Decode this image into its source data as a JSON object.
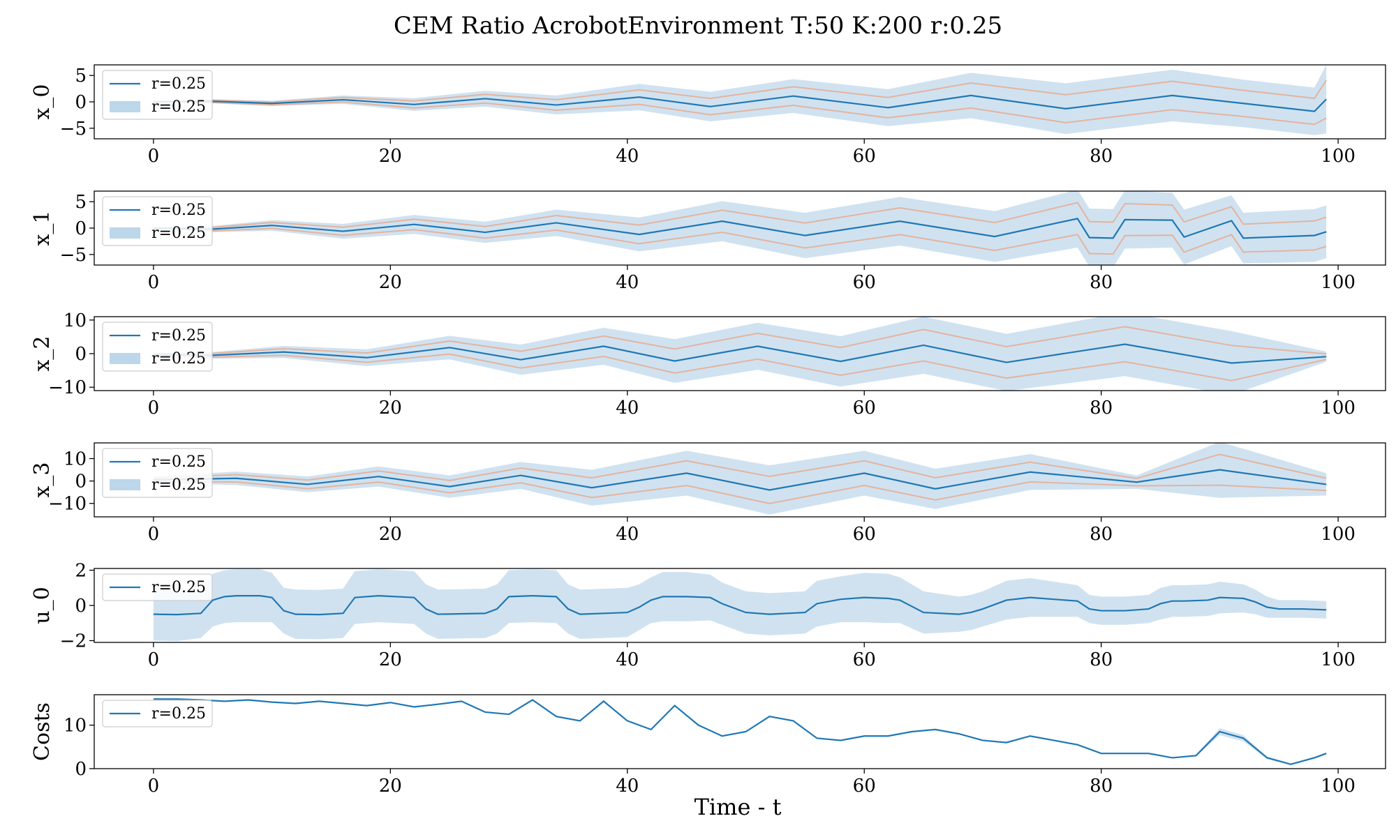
{
  "figure": {
    "title": "CEM Ratio AcrobotEnvironment T:50 K:200 r:0.25",
    "xlabel": "Time - t"
  },
  "colors": {
    "mean": "#1f77b4",
    "band": "#bcd6ea",
    "bounds": "#e8a88a"
  },
  "chart_data": [
    {
      "type": "line",
      "ylabel": "x_0",
      "xlim": [
        -5,
        104
      ],
      "ylim": [
        -7,
        7
      ],
      "yticks": [
        -5,
        0,
        5
      ],
      "xticks": [
        0,
        20,
        40,
        60,
        80,
        100
      ],
      "legend": {
        "placement": "upper-left",
        "entries": [
          "r=0.25",
          "r=0.25"
        ]
      },
      "x": [
        0,
        5,
        10,
        16,
        22,
        28,
        34,
        41,
        47,
        54,
        62,
        69,
        77,
        86,
        92,
        98,
        99
      ],
      "mean": [
        0,
        0.1,
        -0.3,
        0.4,
        -0.5,
        0.6,
        -0.6,
        0.9,
        -0.9,
        1.1,
        -1.1,
        1.2,
        -1.3,
        1.2,
        -0.3,
        -1.8,
        0.5
      ],
      "band_half": [
        0,
        0.4,
        0.5,
        0.8,
        1.2,
        1.5,
        1.8,
        2.5,
        2.8,
        3.2,
        3.5,
        4.3,
        4.8,
        4.9,
        4.5,
        4.5,
        6.5
      ]
    },
    {
      "type": "line",
      "ylabel": "x_1",
      "xlim": [
        -5,
        104
      ],
      "ylim": [
        -7,
        7
      ],
      "yticks": [
        -5,
        0,
        5
      ],
      "xticks": [
        0,
        20,
        40,
        60,
        80,
        100
      ],
      "legend": {
        "placement": "upper-left",
        "entries": [
          "r=0.25",
          "r=0.25"
        ]
      },
      "x": [
        0,
        5,
        10,
        16,
        22,
        28,
        34,
        41,
        48,
        55,
        63,
        71,
        78,
        79,
        81,
        82,
        86,
        87,
        91,
        92,
        98,
        99
      ],
      "mean": [
        0,
        -0.2,
        0.5,
        -0.6,
        0.7,
        -0.8,
        1.0,
        -1.2,
        1.3,
        -1.4,
        1.3,
        -1.6,
        1.8,
        -1.8,
        -1.9,
        1.6,
        1.5,
        -1.7,
        1.4,
        -1.9,
        -1.4,
        -0.7
      ],
      "band_half": [
        0,
        0.6,
        1.0,
        1.4,
        1.8,
        2.0,
        2.5,
        3.2,
        3.8,
        4.3,
        4.6,
        4.8,
        5.5,
        5.5,
        5.5,
        5.5,
        5.2,
        5.2,
        4.8,
        4.8,
        5.0,
        5.0
      ]
    },
    {
      "type": "line",
      "ylabel": "x_2",
      "xlim": [
        -5,
        104
      ],
      "ylim": [
        -11,
        11
      ],
      "yticks": [
        -10,
        0,
        10
      ],
      "xticks": [
        0,
        20,
        40,
        60,
        80,
        100
      ],
      "legend": {
        "placement": "upper-left",
        "entries": [
          "r=0.25",
          "r=0.25"
        ]
      },
      "x": [
        0,
        5,
        11,
        18,
        25,
        31,
        38,
        44,
        51,
        58,
        65,
        72,
        82,
        91,
        99
      ],
      "mean": [
        -0.3,
        -0.5,
        0.5,
        -1.2,
        1.8,
        -1.8,
        2.2,
        -2.2,
        2.2,
        -2.3,
        2.5,
        -2.6,
        2.8,
        -2.8,
        -0.9
      ],
      "band_half": [
        0.5,
        1.0,
        1.8,
        2.5,
        3.5,
        4.5,
        5.5,
        6.5,
        7.0,
        7.5,
        8.5,
        8.5,
        9.5,
        9.5,
        1.5
      ]
    },
    {
      "type": "line",
      "ylabel": "x_3",
      "xlim": [
        -5,
        104
      ],
      "ylim": [
        -16,
        17
      ],
      "yticks": [
        -10,
        0,
        10
      ],
      "xticks": [
        0,
        20,
        40,
        60,
        80,
        100
      ],
      "legend": {
        "placement": "upper-left",
        "entries": [
          "r=0.25",
          "r=0.25"
        ]
      },
      "x": [
        0,
        7,
        13,
        19,
        25,
        31,
        37,
        45,
        52,
        60,
        66,
        74,
        83,
        90,
        99
      ],
      "mean": [
        0.5,
        1.2,
        -1.5,
        2.0,
        -2.5,
        2.5,
        -3.0,
        3.5,
        -4.0,
        3.5,
        -3.5,
        4.0,
        -0.5,
        5.0,
        -1.5
      ],
      "band_half": [
        1.5,
        3.0,
        3.5,
        4.5,
        5.0,
        6.0,
        8.0,
        10.0,
        11.0,
        10.0,
        9.0,
        8.0,
        3.0,
        12.5,
        5.0
      ]
    },
    {
      "type": "line",
      "ylabel": "u_0",
      "xlim": [
        -5,
        104
      ],
      "ylim": [
        -2.1,
        2.1
      ],
      "yticks": [
        -2,
        0,
        2
      ],
      "xticks": [
        0,
        20,
        40,
        60,
        80,
        100
      ],
      "legend": {
        "placement": "upper-left",
        "entries": [
          "r=0.25"
        ]
      },
      "x": [
        0,
        2,
        4,
        5,
        6,
        7,
        9,
        10,
        11,
        12,
        14,
        16,
        17,
        19,
        22,
        23,
        24,
        28,
        29,
        30,
        32,
        34,
        35,
        36,
        40,
        41,
        42,
        43,
        45,
        47,
        48,
        50,
        52,
        55,
        56,
        58,
        60,
        62,
        63,
        65,
        68,
        69,
        70,
        72,
        74,
        76,
        78,
        79,
        80,
        82,
        84,
        85,
        86,
        87,
        89,
        90,
        92,
        93,
        94,
        95,
        97,
        99
      ],
      "mean": [
        -0.5,
        -0.52,
        -0.45,
        0.3,
        0.5,
        0.55,
        0.55,
        0.45,
        -0.3,
        -0.5,
        -0.52,
        -0.45,
        0.45,
        0.55,
        0.45,
        -0.2,
        -0.5,
        -0.45,
        -0.2,
        0.5,
        0.55,
        0.5,
        -0.2,
        -0.5,
        -0.4,
        -0.1,
        0.3,
        0.5,
        0.5,
        0.45,
        0.1,
        -0.4,
        -0.5,
        -0.4,
        0.1,
        0.35,
        0.45,
        0.4,
        0.3,
        -0.4,
        -0.5,
        -0.4,
        -0.2,
        0.3,
        0.45,
        0.35,
        0.25,
        -0.2,
        -0.3,
        -0.3,
        -0.2,
        0.1,
        0.25,
        0.25,
        0.3,
        0.45,
        0.4,
        0.2,
        -0.1,
        -0.2,
        -0.2,
        -0.25
      ],
      "band_half": [
        1.5,
        1.5,
        1.4,
        1.5,
        1.5,
        1.5,
        1.5,
        1.4,
        1.3,
        1.4,
        1.4,
        1.4,
        1.5,
        1.5,
        1.5,
        1.4,
        1.4,
        1.4,
        1.4,
        1.5,
        1.5,
        1.5,
        1.4,
        1.4,
        1.4,
        1.3,
        1.3,
        1.4,
        1.4,
        1.3,
        1.2,
        1.2,
        1.2,
        1.2,
        1.3,
        1.3,
        1.4,
        1.4,
        1.3,
        1.2,
        1.0,
        1.0,
        1.0,
        1.1,
        1.1,
        1.0,
        0.9,
        0.8,
        0.8,
        0.8,
        0.8,
        0.9,
        0.9,
        0.9,
        0.9,
        0.9,
        0.8,
        0.7,
        0.6,
        0.5,
        0.5,
        0.5
      ]
    },
    {
      "type": "line",
      "ylabel": "Costs",
      "xlim": [
        -5,
        104
      ],
      "ylim": [
        0,
        17
      ],
      "yticks": [
        0,
        10
      ],
      "xticks": [
        0,
        20,
        40,
        60,
        80,
        100
      ],
      "legend": {
        "placement": "upper-left",
        "entries": [
          "r=0.25"
        ]
      },
      "x": [
        0,
        2,
        4,
        6,
        8,
        10,
        12,
        14,
        16,
        18,
        20,
        22,
        24,
        26,
        28,
        30,
        32,
        34,
        36,
        38,
        40,
        42,
        44,
        46,
        48,
        50,
        52,
        54,
        56,
        58,
        60,
        62,
        64,
        66,
        68,
        70,
        72,
        74,
        76,
        78,
        80,
        82,
        84,
        86,
        88,
        90,
        92,
        94,
        96,
        98,
        99
      ],
      "mean": [
        16,
        16,
        15.8,
        15.5,
        15.8,
        15.3,
        15,
        15.5,
        15,
        14.5,
        15.2,
        14.2,
        14.8,
        15.5,
        13,
        12.5,
        15.8,
        12,
        11,
        15.5,
        11,
        9,
        14.5,
        10,
        7.5,
        8.5,
        12,
        11,
        7,
        6.5,
        7.5,
        7.5,
        8.5,
        9,
        8,
        6.5,
        6,
        7.5,
        6.5,
        5.5,
        3.5,
        3.5,
        3.5,
        2.5,
        3,
        8.5,
        7,
        2.5,
        1,
        2.5,
        3.5
      ],
      "band_half": [
        0.1,
        0.1,
        0.1,
        0.1,
        0.1,
        0.1,
        0.1,
        0.1,
        0.1,
        0.1,
        0.1,
        0.1,
        0.1,
        0.1,
        0.1,
        0.1,
        0.1,
        0.1,
        0.1,
        0.1,
        0.1,
        0.1,
        0.1,
        0.1,
        0.1,
        0.1,
        0.1,
        0.1,
        0.1,
        0.1,
        0.1,
        0.1,
        0.1,
        0.1,
        0.1,
        0.1,
        0.1,
        0.1,
        0.1,
        0.1,
        0.1,
        0.1,
        0.1,
        0.1,
        0.2,
        0.8,
        0.7,
        0.3,
        0.2,
        0.2,
        0.2
      ]
    }
  ]
}
